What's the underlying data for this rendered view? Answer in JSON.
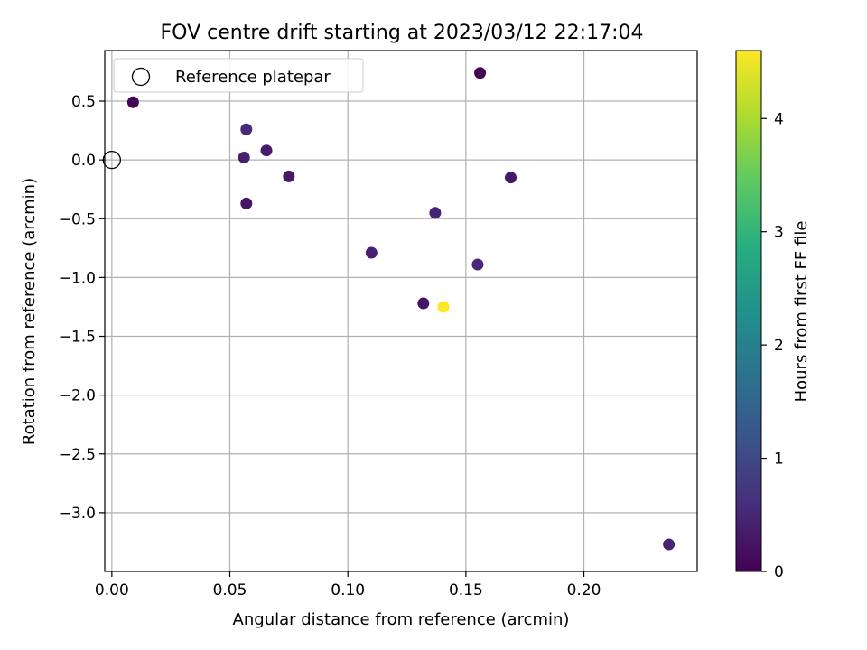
{
  "chart_data": {
    "type": "scatter",
    "title": "FOV centre drift starting at 2023/03/12 22:17:04",
    "xlabel": "Angular distance from reference (arcmin)",
    "ylabel": "Rotation from reference (arcmin)",
    "xlim": [
      -0.003,
      0.248
    ],
    "ylim": [
      -3.5,
      0.93
    ],
    "x_ticks": [
      0.0,
      0.05,
      0.1,
      0.15,
      0.2
    ],
    "x_tick_labels": [
      "0.00",
      "0.05",
      "0.10",
      "0.15",
      "0.20"
    ],
    "y_ticks": [
      0.5,
      0.0,
      -0.5,
      -1.0,
      -1.5,
      -2.0,
      -2.5,
      -3.0
    ],
    "y_tick_labels": [
      "0.5",
      "0.0",
      "−0.5",
      "−1.0",
      "−1.5",
      "−2.0",
      "−2.5",
      "−3.0"
    ],
    "grid": true,
    "legend": {
      "position": "top-left",
      "entries": [
        "Reference platepar"
      ]
    },
    "reference_point": {
      "x": 0.0,
      "y": 0.0
    },
    "colorbar": {
      "label": "Hours from first FF file",
      "range": [
        0,
        4.6
      ],
      "ticks": [
        0,
        1,
        2,
        3,
        4
      ],
      "tick_labels": [
        "0",
        "1",
        "2",
        "3",
        "4"
      ],
      "colormap": "viridis"
    },
    "points": [
      {
        "x": 0.009,
        "y": 0.49,
        "hours": 0.05
      },
      {
        "x": 0.156,
        "y": 0.74,
        "hours": 0.05
      },
      {
        "x": 0.057,
        "y": 0.26,
        "hours": 0.55
      },
      {
        "x": 0.0655,
        "y": 0.08,
        "hours": 0.35
      },
      {
        "x": 0.056,
        "y": 0.02,
        "hours": 0.4
      },
      {
        "x": 0.075,
        "y": -0.14,
        "hours": 0.3
      },
      {
        "x": 0.057,
        "y": -0.37,
        "hours": 0.25
      },
      {
        "x": 0.169,
        "y": -0.15,
        "hours": 0.3
      },
      {
        "x": 0.137,
        "y": -0.45,
        "hours": 0.45
      },
      {
        "x": 0.11,
        "y": -0.79,
        "hours": 0.4
      },
      {
        "x": 0.155,
        "y": -0.89,
        "hours": 0.5
      },
      {
        "x": 0.132,
        "y": -1.22,
        "hours": 0.25
      },
      {
        "x": 0.1405,
        "y": -1.25,
        "hours": 4.6
      },
      {
        "x": 0.236,
        "y": -3.27,
        "hours": 0.45
      }
    ]
  }
}
